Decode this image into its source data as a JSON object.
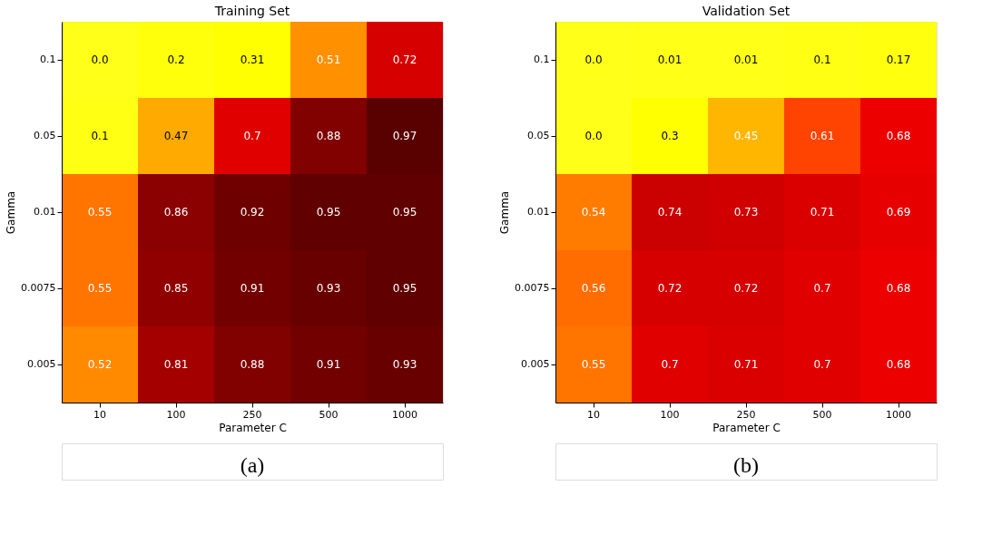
{
  "chart_data": [
    {
      "type": "heatmap",
      "title": "Training Set",
      "xlabel": "Parameter C",
      "ylabel": "Gamma",
      "categories": [
        "10",
        "100",
        "250",
        "500",
        "1000"
      ],
      "y_categories": [
        "0.1",
        "0.05",
        "0.01",
        "0.0075",
        "0.005"
      ],
      "cells": [
        [
          0.0,
          0.2,
          0.31,
          0.51,
          0.72
        ],
        [
          0.1,
          0.47,
          0.7,
          0.88,
          0.97
        ],
        [
          0.55,
          0.86,
          0.92,
          0.95,
          0.95
        ],
        [
          0.55,
          0.85,
          0.91,
          0.93,
          0.95
        ],
        [
          0.52,
          0.81,
          0.88,
          0.91,
          0.93
        ]
      ],
      "cell_labels": [
        [
          "0.0",
          "0.2",
          "0.31",
          "0.51",
          "0.72"
        ],
        [
          "0.1",
          "0.47",
          "0.7",
          "0.88",
          "0.97"
        ],
        [
          "0.55",
          "0.86",
          "0.92",
          "0.95",
          "0.95"
        ],
        [
          "0.55",
          "0.85",
          "0.91",
          "0.93",
          "0.95"
        ],
        [
          "0.52",
          "0.81",
          "0.88",
          "0.91",
          "0.93"
        ]
      ],
      "annotations": [
        "(a)"
      ]
    },
    {
      "type": "heatmap",
      "title": "Validation Set",
      "xlabel": "Parameter C",
      "ylabel": "Gamma",
      "categories": [
        "10",
        "100",
        "250",
        "500",
        "1000"
      ],
      "y_categories": [
        "0.1",
        "0.05",
        "0.01",
        "0.0075",
        "0.005"
      ],
      "cells": [
        [
          0.0,
          0.01,
          0.01,
          0.1,
          0.17
        ],
        [
          0.0,
          0.3,
          0.45,
          0.61,
          0.68
        ],
        [
          0.54,
          0.74,
          0.73,
          0.71,
          0.69
        ],
        [
          0.56,
          0.72,
          0.72,
          0.7,
          0.68
        ],
        [
          0.55,
          0.7,
          0.71,
          0.7,
          0.68
        ]
      ],
      "cell_labels": [
        [
          "0.0",
          "0.01",
          "0.01",
          "0.1",
          "0.17"
        ],
        [
          "0.0",
          "0.3",
          "0.45",
          "0.61",
          "0.68"
        ],
        [
          "0.54",
          "0.74",
          "0.73",
          "0.71",
          "0.69"
        ],
        [
          "0.56",
          "0.72",
          "0.72",
          "0.7",
          "0.68"
        ],
        [
          "0.55",
          "0.7",
          "0.71",
          "0.7",
          "0.68"
        ]
      ],
      "annotations": [
        "(b)"
      ]
    }
  ]
}
